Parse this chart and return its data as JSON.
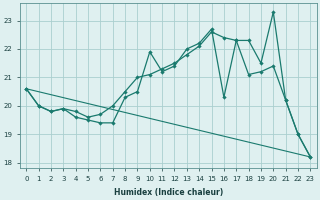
{
  "xlabel": "Humidex (Indice chaleur)",
  "bg_color": "#dff0f0",
  "grid_color": "#aacfcf",
  "line_color": "#1a7a6e",
  "xlim": [
    -0.5,
    23.5
  ],
  "ylim": [
    17.8,
    23.6
  ],
  "yticks": [
    18,
    19,
    20,
    21,
    22,
    23
  ],
  "xticks": [
    0,
    1,
    2,
    3,
    4,
    5,
    6,
    7,
    8,
    9,
    10,
    11,
    12,
    13,
    14,
    15,
    16,
    17,
    18,
    19,
    20,
    21,
    22,
    23
  ],
  "series1": [
    [
      0,
      20.6
    ],
    [
      1,
      20.0
    ],
    [
      2,
      19.8
    ],
    [
      3,
      19.9
    ],
    [
      4,
      19.6
    ],
    [
      5,
      19.5
    ],
    [
      6,
      19.4
    ],
    [
      7,
      19.4
    ],
    [
      8,
      20.3
    ],
    [
      9,
      20.5
    ],
    [
      10,
      21.9
    ],
    [
      11,
      21.2
    ],
    [
      12,
      21.4
    ],
    [
      13,
      22.0
    ],
    [
      14,
      22.2
    ],
    [
      15,
      22.7
    ],
    [
      16,
      20.3
    ],
    [
      17,
      22.3
    ],
    [
      18,
      22.3
    ],
    [
      19,
      21.5
    ],
    [
      20,
      23.3
    ],
    [
      21,
      20.2
    ],
    [
      22,
      19.0
    ],
    [
      23,
      18.2
    ]
  ],
  "series2": [
    [
      0,
      20.6
    ],
    [
      1,
      20.0
    ],
    [
      2,
      19.8
    ],
    [
      3,
      19.9
    ],
    [
      4,
      19.8
    ],
    [
      5,
      19.6
    ],
    [
      6,
      19.7
    ],
    [
      7,
      20.0
    ],
    [
      8,
      20.5
    ],
    [
      9,
      21.0
    ],
    [
      10,
      21.1
    ],
    [
      11,
      21.3
    ],
    [
      12,
      21.5
    ],
    [
      13,
      21.8
    ],
    [
      14,
      22.1
    ],
    [
      15,
      22.6
    ],
    [
      16,
      22.4
    ],
    [
      17,
      22.3
    ],
    [
      18,
      21.1
    ],
    [
      19,
      21.2
    ],
    [
      20,
      21.4
    ],
    [
      21,
      20.2
    ],
    [
      22,
      19.0
    ],
    [
      23,
      18.2
    ]
  ],
  "series3": [
    [
      0,
      20.6
    ],
    [
      23,
      18.2
    ]
  ]
}
